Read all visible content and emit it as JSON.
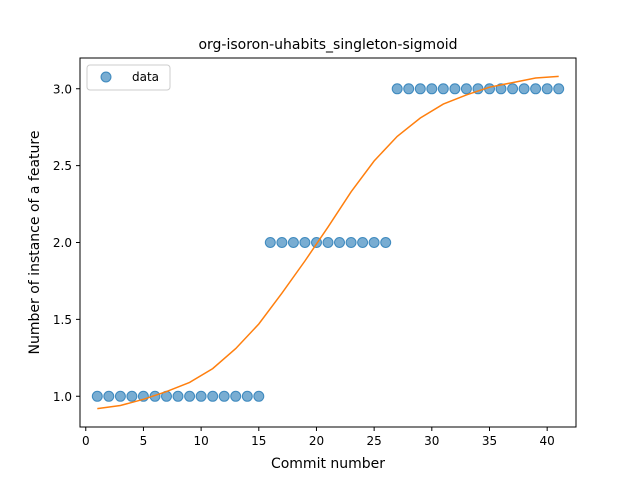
{
  "chart_data": {
    "type": "scatter",
    "title": "org-isoron-uhabits_singleton-sigmoid",
    "xlabel": "Commit number",
    "ylabel": "Number of instance of a feature",
    "xlim": [
      -0.5,
      42.5
    ],
    "ylim": [
      0.8,
      3.2
    ],
    "xticks": [
      0,
      5,
      10,
      15,
      20,
      25,
      30,
      35,
      40
    ],
    "yticks": [
      1.0,
      1.5,
      2.0,
      2.5,
      3.0
    ],
    "xtick_labels": [
      "0",
      "5",
      "10",
      "15",
      "20",
      "25",
      "30",
      "35",
      "40"
    ],
    "ytick_labels": [
      "1.0",
      "1.5",
      "2.0",
      "2.5",
      "3.0"
    ],
    "grid": false,
    "legend": {
      "position": "top-left",
      "entries": [
        "data"
      ]
    },
    "colors": {
      "data": "#1f77b4",
      "fit": "#ff7f0e"
    },
    "series": [
      {
        "name": "data",
        "kind": "scatter",
        "x": [
          1,
          2,
          3,
          4,
          5,
          6,
          7,
          8,
          9,
          10,
          11,
          12,
          13,
          14,
          15,
          16,
          17,
          18,
          19,
          20,
          21,
          22,
          23,
          24,
          25,
          26,
          27,
          28,
          29,
          30,
          31,
          32,
          33,
          34,
          35,
          36,
          37,
          38,
          39,
          40,
          41
        ],
        "y": [
          1,
          1,
          1,
          1,
          1,
          1,
          1,
          1,
          1,
          1,
          1,
          1,
          1,
          1,
          1,
          2,
          2,
          2,
          2,
          2,
          2,
          2,
          2,
          2,
          2,
          2,
          3,
          3,
          3,
          3,
          3,
          3,
          3,
          3,
          3,
          3,
          3,
          3,
          3,
          3,
          3
        ]
      },
      {
        "kind": "line",
        "x": [
          1,
          3,
          5,
          7,
          9,
          11,
          13,
          15,
          17,
          19,
          21,
          23,
          25,
          27,
          29,
          31,
          33,
          35,
          37,
          39,
          41
        ],
        "y": [
          0.92,
          0.94,
          0.98,
          1.03,
          1.09,
          1.18,
          1.31,
          1.47,
          1.67,
          1.88,
          2.1,
          2.33,
          2.53,
          2.69,
          2.81,
          2.9,
          2.96,
          3.01,
          3.04,
          3.07,
          3.08
        ]
      }
    ]
  }
}
